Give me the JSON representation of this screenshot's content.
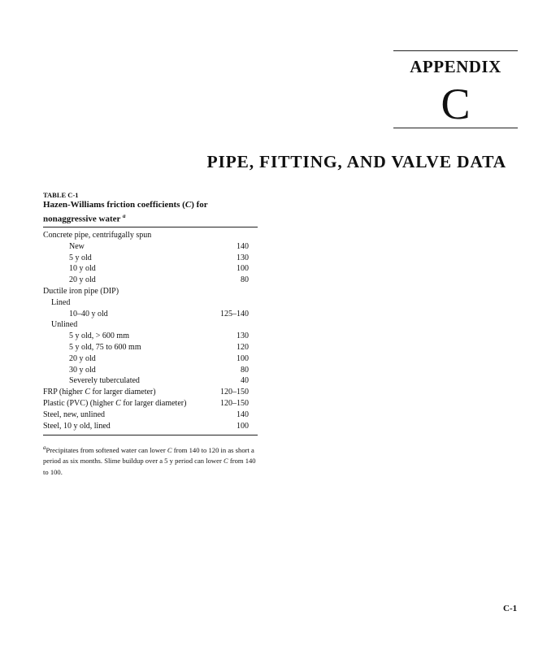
{
  "appendix": {
    "label": "APPENDIX",
    "letter": "C"
  },
  "title": "PIPE, FITTING, AND VALVE DATA",
  "table": {
    "label": "TABLE C-1",
    "heading_pre": "Hazen-Williams friction coefficients (",
    "heading_c": "C",
    "heading_post": ") for nonaggressive water ",
    "heading_note": "a",
    "rows": [
      {
        "label": "Concrete pipe, centrifugally spun",
        "value": "",
        "indent": 0
      },
      {
        "label": "New",
        "value": "140",
        "indent": 2
      },
      {
        "label": "5 y old",
        "value": "130",
        "indent": 2
      },
      {
        "label": "10 y old",
        "value": "100",
        "indent": 2
      },
      {
        "label": "20 y old",
        "value": "80",
        "indent": 2
      },
      {
        "label": "Ductile iron pipe (DIP)",
        "value": "",
        "indent": 0
      },
      {
        "label": "Lined",
        "value": "",
        "indent": 1
      },
      {
        "label": "10–40 y old",
        "value": "125–140",
        "indent": 2
      },
      {
        "label": "Unlined",
        "value": "",
        "indent": 1
      },
      {
        "label": "5 y old, > 600 mm",
        "value": "130",
        "indent": 2
      },
      {
        "label": "5 y old, 75 to 600 mm",
        "value": "120",
        "indent": 2
      },
      {
        "label": "20 y old",
        "value": "100",
        "indent": 2
      },
      {
        "label": "30 y old",
        "value": "80",
        "indent": 2
      },
      {
        "label": "Severely tuberculated",
        "value": "40",
        "indent": 2
      },
      {
        "label": "FRP (higher C for larger diameter)",
        "value": "120–150",
        "indent": 0
      },
      {
        "label": "Plastic (PVC) (higher C for larger diameter)",
        "value": "120–150",
        "indent": 0
      },
      {
        "label": "Steel, new, unlined",
        "value": "140",
        "indent": 0
      },
      {
        "label": "Steel, 10 y old, lined",
        "value": "100",
        "indent": 0
      }
    ],
    "footnote_mark": "a",
    "footnote": "Precipitates from softened water can lower C from 140 to 120 in as short a period as six months. Slime buildup over a 5 y period can lower C from 140 to 100."
  },
  "page_number": "C-1"
}
